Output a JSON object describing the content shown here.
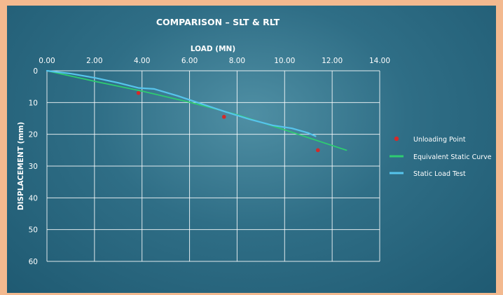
{
  "chart_data": {
    "type": "line",
    "title": "COMPARISON – SLT & RLT",
    "xlabel": "LOAD (MN)",
    "ylabel": "DISPLACEMENT (mm)",
    "x_axis_position": "top",
    "y_axis_inverted": true,
    "xlim": [
      0,
      14
    ],
    "ylim": [
      0,
      60
    ],
    "x_ticks": [
      "0.00",
      "2.00",
      "4.00",
      "6.00",
      "8.00",
      "10.00",
      "12.00",
      "14.00"
    ],
    "y_ticks": [
      "0",
      "10",
      "20",
      "30",
      "40",
      "50",
      "60"
    ],
    "grid": true,
    "legend_position": "right",
    "series": [
      {
        "name": "Unloading Point",
        "kind": "scatter",
        "color": "#d42a2a",
        "x": [
          3.85,
          7.45,
          11.4
        ],
        "y": [
          7,
          14.5,
          25
        ]
      },
      {
        "name": "Equivalent Static Curve",
        "kind": "line",
        "color": "#2ecc71",
        "x": [
          0,
          2,
          4,
          6,
          8,
          10,
          12.6
        ],
        "y": [
          0,
          3.3,
          6.4,
          9.9,
          13.8,
          18.6,
          25
        ]
      },
      {
        "name": "Static Load Test",
        "kind": "line",
        "color": "#56c4ec",
        "x": [
          0,
          1,
          2,
          3,
          3.85,
          4.5,
          5.5,
          6.5,
          7.5,
          8.5,
          9.5,
          10.3,
          11.0,
          11.3
        ],
        "y": [
          0,
          0.9,
          2.2,
          3.8,
          5.4,
          5.7,
          7.9,
          10.4,
          12.9,
          15.2,
          17.2,
          18.1,
          19.6,
          20.6
        ]
      }
    ]
  }
}
